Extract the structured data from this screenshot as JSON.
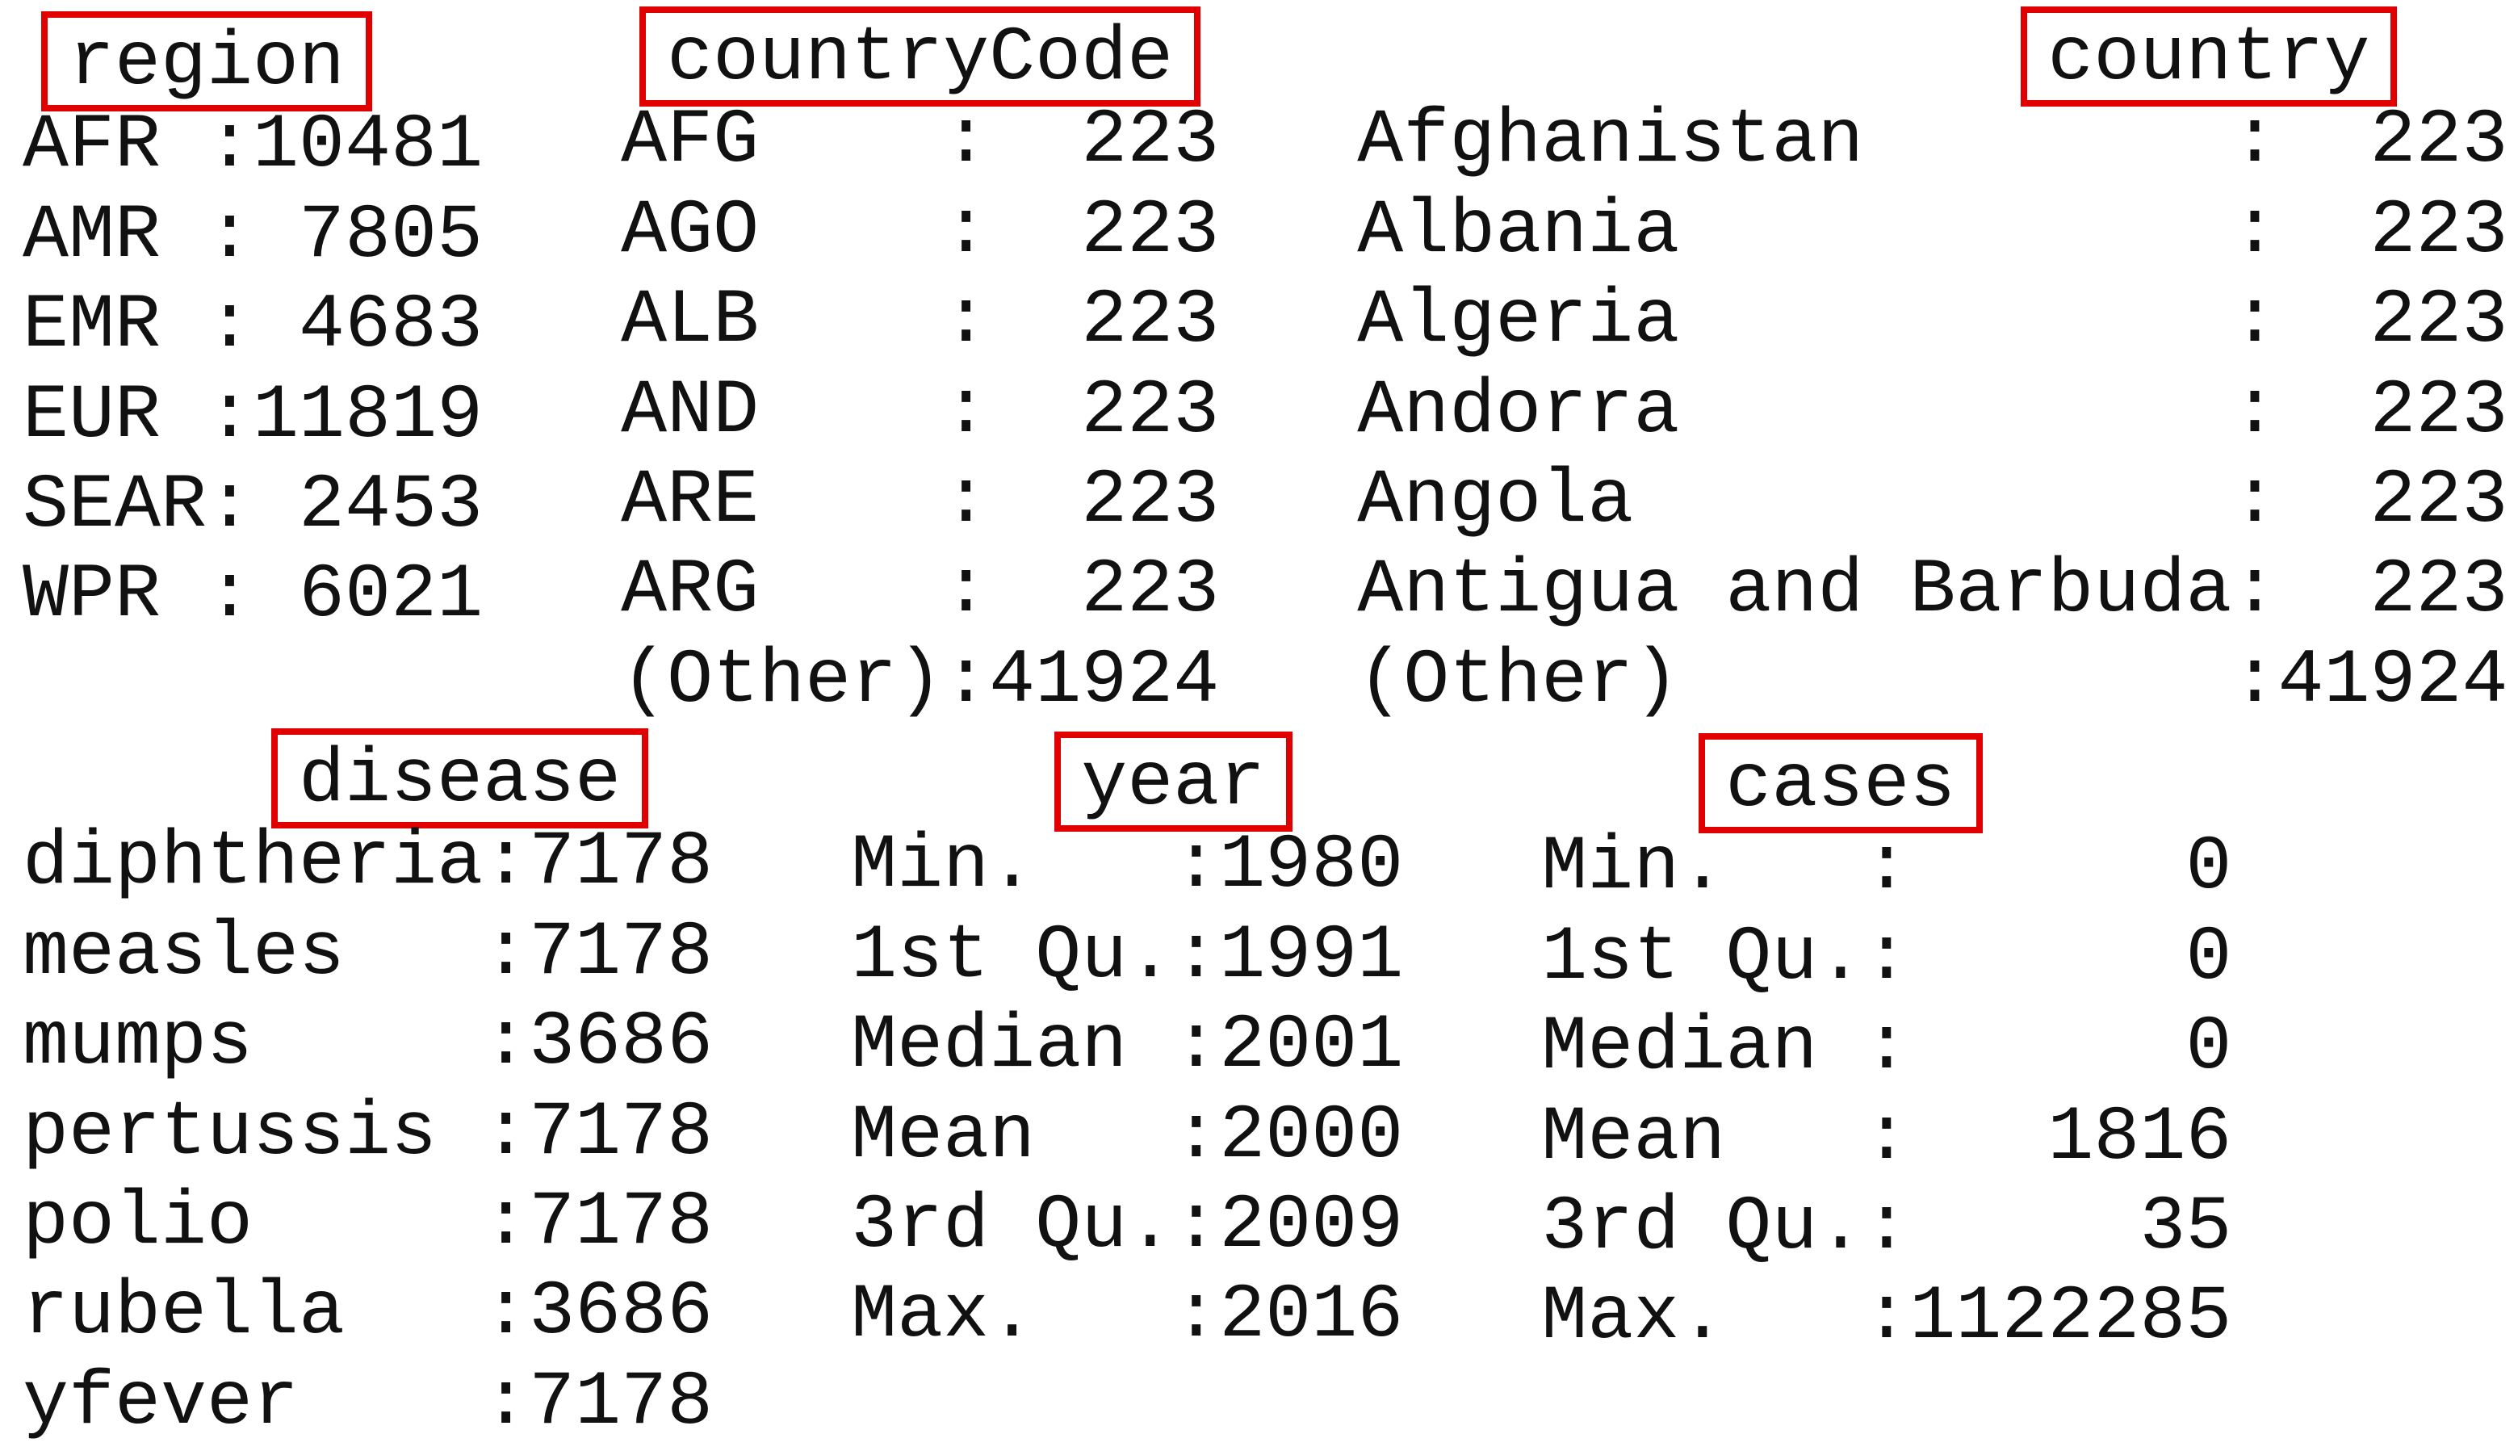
{
  "top": {
    "columns": [
      {
        "header": "region",
        "rows": [
          "AFR :10481",
          "AMR : 7805",
          "EMR : 4683",
          "EUR :11819",
          "SEAR: 2453",
          "WPR : 6021"
        ]
      },
      {
        "header": "countryCode",
        "rows": [
          "AFG    :  223",
          "AGO    :  223",
          "ALB    :  223",
          "AND    :  223",
          "ARE    :  223",
          "ARG    :  223",
          "(Other):41924"
        ]
      },
      {
        "header": "country",
        "rows": [
          "Afghanistan        :  223",
          "Albania            :  223",
          "Algeria            :  223",
          "Andorra            :  223",
          "Angola             :  223",
          "Antigua and Barbuda:  223",
          "(Other)            :41924"
        ]
      }
    ]
  },
  "bottom": {
    "columns": [
      {
        "header": "disease",
        "rows": [
          "diphtheria:7178",
          "measles   :7178",
          "mumps     :3686",
          "pertussis :7178",
          "polio     :7178",
          "rubella   :3686",
          "yfever    :7178"
        ]
      },
      {
        "header": "year",
        "rows": [
          "Min.   :1980",
          "1st Qu.:1991",
          "Median :2001",
          "Mean   :2000",
          "3rd Qu.:2009",
          "Max.   :2016"
        ]
      },
      {
        "header": "cases",
        "rows": [
          "Min.   :      0",
          "1st Qu.:      0",
          "Median :      0",
          "Mean   :   1816",
          "3rd Qu.:     35",
          "Max.   :1122285"
        ]
      }
    ]
  }
}
